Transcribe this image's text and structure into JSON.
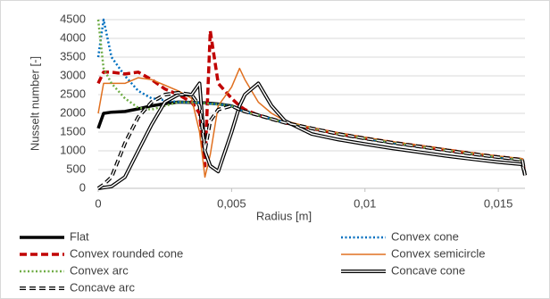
{
  "chart_data": {
    "type": "line",
    "x_label": "Radius [m]",
    "y_label": "Nusselt number [-]",
    "x": [
      0,
      0.0002,
      0.0005,
      0.001,
      0.0015,
      0.002,
      0.0025,
      0.003,
      0.0035,
      0.0038,
      0.004,
      0.0042,
      0.0045,
      0.005,
      0.0053,
      0.0055,
      0.006,
      0.0065,
      0.007,
      0.008,
      0.009,
      0.01,
      0.011,
      0.012,
      0.013,
      0.014,
      0.015,
      0.0159,
      0.016
    ],
    "xlim": [
      0,
      0.016
    ],
    "xticks": [
      0,
      {
        "value": 0.005,
        "label": "0,005"
      },
      {
        "value": 0.01,
        "label": "0,01"
      },
      {
        "value": 0.015,
        "label": "0,015"
      }
    ],
    "ylim": [
      0,
      4500
    ],
    "yticks": [
      0,
      500,
      1000,
      1500,
      2000,
      2500,
      3000,
      3500,
      4000,
      4500
    ],
    "grid": true,
    "series": [
      {
        "name": "Flat",
        "color": "#000000",
        "style": "thick",
        "values": [
          1600,
          2000,
          2030,
          2050,
          2120,
          2200,
          2260,
          2300,
          2290,
          2280,
          2280,
          2270,
          2250,
          2200,
          2100,
          2050,
          1950,
          1850,
          1750,
          1600,
          1450,
          1330,
          1220,
          1120,
          1020,
          920,
          830,
          760,
          350
        ]
      },
      {
        "name": "Convex cone",
        "color": "#0070c0",
        "style": "dotted",
        "values": [
          3500,
          4500,
          3500,
          3000,
          2600,
          2400,
          2350,
          2300,
          2290,
          2280,
          2270,
          2260,
          2240,
          2200,
          2100,
          2050,
          1950,
          1850,
          1750,
          1600,
          1450,
          1330,
          1220,
          1120,
          1020,
          920,
          830,
          760,
          350
        ]
      },
      {
        "name": "Convex rounded cone",
        "color": "#c00000",
        "style": "thick-dashed",
        "values": [
          2800,
          3100,
          3100,
          3050,
          3100,
          2900,
          2650,
          2500,
          2300,
          2000,
          600,
          4200,
          2800,
          2400,
          2200,
          2100,
          1950,
          1850,
          1750,
          1600,
          1460,
          1340,
          1230,
          1130,
          1030,
          930,
          840,
          770,
          350
        ]
      },
      {
        "name": "Convex semicircle",
        "color": "#e07020",
        "style": "solid",
        "values": [
          2000,
          2800,
          2800,
          2800,
          2950,
          2900,
          2750,
          2600,
          2400,
          1500,
          300,
          900,
          2200,
          2700,
          3200,
          2900,
          2300,
          2000,
          1800,
          1620,
          1480,
          1360,
          1250,
          1150,
          1050,
          950,
          860,
          790,
          350
        ]
      },
      {
        "name": "Convex arc",
        "color": "#70ad47",
        "style": "dotted",
        "values": [
          4500,
          3200,
          2800,
          2400,
          2150,
          2100,
          2200,
          2300,
          2290,
          2280,
          2270,
          2260,
          2240,
          2200,
          2100,
          2050,
          1950,
          1850,
          1750,
          1600,
          1450,
          1330,
          1220,
          1120,
          1020,
          920,
          830,
          760,
          350
        ]
      },
      {
        "name": "Concave cone",
        "color": "#000000",
        "style": "double",
        "values": [
          0,
          20,
          50,
          300,
          1000,
          1700,
          2300,
          2500,
          2500,
          2800,
          1000,
          600,
          450,
          1500,
          2200,
          2500,
          2800,
          2200,
          1800,
          1450,
          1300,
          1180,
          1070,
          970,
          870,
          780,
          700,
          640,
          350
        ]
      },
      {
        "name": "Concave arc",
        "color": "#000000",
        "style": "double-dashed",
        "values": [
          0,
          100,
          300,
          1200,
          1900,
          2300,
          2500,
          2550,
          2500,
          2200,
          1000,
          1800,
          2100,
          2200,
          2100,
          2050,
          1950,
          1850,
          1750,
          1600,
          1450,
          1330,
          1220,
          1120,
          1020,
          920,
          830,
          760,
          350
        ]
      }
    ]
  }
}
